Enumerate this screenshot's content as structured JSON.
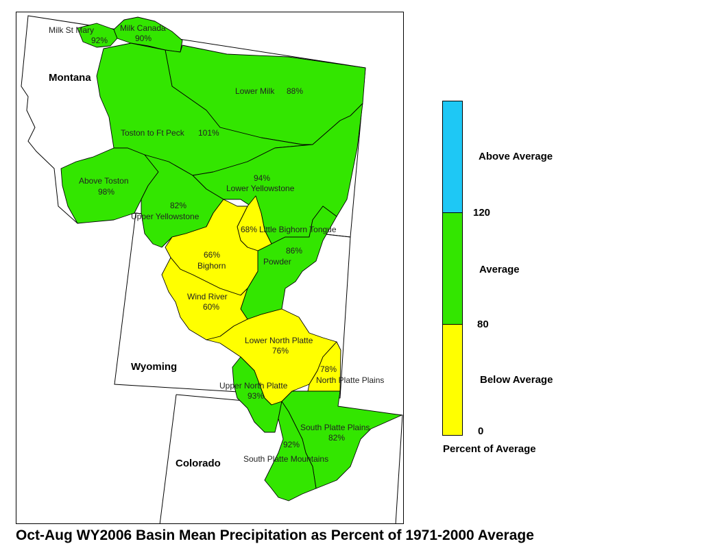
{
  "title": "Oct-Aug WY2006 Basin Mean Precipitation as Percent of 1971-2000 Average",
  "colors": {
    "above": "#1ec8f5",
    "average": "#33e600",
    "below": "#ffff00"
  },
  "legend": {
    "title": "Percent of Average",
    "categories": [
      {
        "label": "Above Average",
        "color": "#1ec8f5"
      },
      {
        "label": "Average",
        "color": "#33e600"
      },
      {
        "label": "Below Average",
        "color": "#ffff00"
      }
    ],
    "breaks": [
      "120",
      "80",
      "0"
    ]
  },
  "states": {
    "montana": "Montana",
    "wyoming": "Wyoming",
    "colorado": "Colorado"
  },
  "basins": [
    {
      "name": "Milk St Mary",
      "pct": "92%",
      "value": 92,
      "category": "average"
    },
    {
      "name": "Milk Canada",
      "pct": "90%",
      "value": 90,
      "category": "average"
    },
    {
      "name": "Lower Milk",
      "pct": "88%",
      "value": 88,
      "category": "average"
    },
    {
      "name": "Toston to Ft Peck",
      "pct": "101%",
      "value": 101,
      "category": "average"
    },
    {
      "name": "Above Toston",
      "pct": "98%",
      "value": 98,
      "category": "average"
    },
    {
      "name": "Lower Yellowstone",
      "pct": "94%",
      "value": 94,
      "category": "average"
    },
    {
      "name": "Upper Yellowstone",
      "pct": "82%",
      "value": 82,
      "category": "average"
    },
    {
      "name": "Little Bighorn Tongue",
      "pct": "68%",
      "value": 68,
      "category": "below"
    },
    {
      "name": "Bighorn",
      "pct": "66%",
      "value": 66,
      "category": "below"
    },
    {
      "name": "Powder",
      "pct": "86%",
      "value": 86,
      "category": "average"
    },
    {
      "name": "Wind River",
      "pct": "60%",
      "value": 60,
      "category": "below"
    },
    {
      "name": "Lower North Platte",
      "pct": "76%",
      "value": 76,
      "category": "below"
    },
    {
      "name": "North Platte Plains",
      "pct": "78%",
      "value": 78,
      "category": "below"
    },
    {
      "name": "Upper North Platte",
      "pct": "93%",
      "value": 93,
      "category": "average"
    },
    {
      "name": "South Platte Plains",
      "pct": "82%",
      "value": 82,
      "category": "average"
    },
    {
      "name": "South Platte Mountains",
      "pct": "92%",
      "value": 92,
      "category": "average"
    }
  ]
}
